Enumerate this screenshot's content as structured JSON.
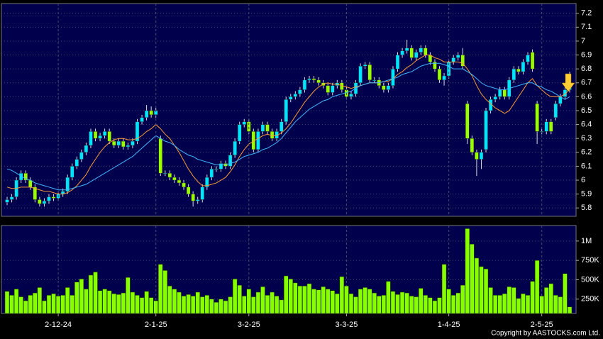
{
  "chart_data": [
    {
      "type": "candlestick",
      "open": [
        5.84,
        5.86,
        5.88,
        6.0,
        6.05,
        6.0,
        5.95,
        5.86,
        5.83,
        5.85,
        5.88,
        5.87,
        5.9,
        5.92,
        6.02,
        6.1,
        6.15,
        6.2,
        6.25,
        6.35,
        6.3,
        6.32,
        6.35,
        6.28,
        6.25,
        6.28,
        6.24,
        6.25,
        6.28,
        6.42,
        6.45,
        6.5,
        6.47,
        6.3,
        6.05,
        6.05,
        6.02,
        6.0,
        5.98,
        5.95,
        5.9,
        5.85,
        5.86,
        5.95,
        6.02,
        6.08,
        6.08,
        6.12,
        6.1,
        6.18,
        6.28,
        6.4,
        6.42,
        6.35,
        6.22,
        6.35,
        6.4,
        6.35,
        6.3,
        6.35,
        6.42,
        6.58,
        6.6,
        6.62,
        6.65,
        6.72,
        6.73,
        6.72,
        6.7,
        6.68,
        6.63,
        6.68,
        6.7,
        6.65,
        6.6,
        6.62,
        6.7,
        6.82,
        6.83,
        6.72,
        6.72,
        6.68,
        6.65,
        6.68,
        6.8,
        6.9,
        6.93,
        6.95,
        6.88,
        6.92,
        6.95,
        6.9,
        6.85,
        6.8,
        6.72,
        6.75,
        6.85,
        6.88,
        6.9,
        6.55,
        6.3,
        6.2,
        6.15,
        6.22,
        6.5,
        6.58,
        6.6,
        6.65,
        6.6,
        6.72,
        6.8,
        6.78,
        6.85,
        6.92,
        6.55,
        6.35,
        6.35,
        6.42,
        6.45,
        6.55,
        6.6,
        6.65
      ],
      "high": [
        5.88,
        5.9,
        6.02,
        6.07,
        6.07,
        6.02,
        5.97,
        5.88,
        5.87,
        5.9,
        5.9,
        5.92,
        5.94,
        6.04,
        6.12,
        6.17,
        6.22,
        6.27,
        6.37,
        6.37,
        6.34,
        6.37,
        6.37,
        6.3,
        6.3,
        6.3,
        6.27,
        6.3,
        6.44,
        6.47,
        6.54,
        6.53,
        6.52,
        6.32,
        6.07,
        6.07,
        6.04,
        6.02,
        6.0,
        5.97,
        5.92,
        5.88,
        5.97,
        6.04,
        6.1,
        6.1,
        6.14,
        6.14,
        6.2,
        6.3,
        6.42,
        6.44,
        6.44,
        6.37,
        6.37,
        6.42,
        6.42,
        6.37,
        6.37,
        6.44,
        6.6,
        6.62,
        6.64,
        6.67,
        6.74,
        6.75,
        6.75,
        6.74,
        6.72,
        6.7,
        6.7,
        6.72,
        6.72,
        6.67,
        6.64,
        6.72,
        6.84,
        6.85,
        6.85,
        6.74,
        6.74,
        6.7,
        6.7,
        6.82,
        6.92,
        6.95,
        7.01,
        6.97,
        6.94,
        6.97,
        6.97,
        6.92,
        6.87,
        6.82,
        6.77,
        6.87,
        6.9,
        6.92,
        6.95,
        6.57,
        6.32,
        6.22,
        6.22,
        6.52,
        6.6,
        6.62,
        6.67,
        6.67,
        6.74,
        6.82,
        6.82,
        6.87,
        6.92,
        6.94,
        6.57,
        6.37,
        6.44,
        6.44,
        6.57,
        6.62,
        6.67,
        6.78
      ],
      "low": [
        5.82,
        5.84,
        5.86,
        5.98,
        5.98,
        5.93,
        5.84,
        5.81,
        5.81,
        5.83,
        5.85,
        5.85,
        5.88,
        5.9,
        6.0,
        6.08,
        6.13,
        6.18,
        6.23,
        6.28,
        6.28,
        6.3,
        6.26,
        6.23,
        6.23,
        6.22,
        6.22,
        6.23,
        6.26,
        6.4,
        6.43,
        6.45,
        6.45,
        6.03,
        6.03,
        6.0,
        5.98,
        5.96,
        5.93,
        5.88,
        5.81,
        5.83,
        5.84,
        5.93,
        6.0,
        6.06,
        6.06,
        6.08,
        6.08,
        6.16,
        6.26,
        6.38,
        6.33,
        6.2,
        6.2,
        6.33,
        6.33,
        6.28,
        6.28,
        6.33,
        6.4,
        6.56,
        6.58,
        6.6,
        6.63,
        6.7,
        6.7,
        6.68,
        6.66,
        6.61,
        6.61,
        6.66,
        6.63,
        6.58,
        6.58,
        6.6,
        6.68,
        6.8,
        6.7,
        6.7,
        6.66,
        6.63,
        6.63,
        6.66,
        6.78,
        6.88,
        6.91,
        6.86,
        6.86,
        6.9,
        6.88,
        6.83,
        6.78,
        6.7,
        6.68,
        6.73,
        6.83,
        6.86,
        6.8,
        6.26,
        6.18,
        6.03,
        6.08,
        6.2,
        6.48,
        6.56,
        6.58,
        6.58,
        6.58,
        6.7,
        6.76,
        6.76,
        6.83,
        6.78,
        6.26,
        6.33,
        6.33,
        6.33,
        6.43,
        6.53,
        6.58,
        6.63
      ],
      "close": [
        5.86,
        5.88,
        6.0,
        6.05,
        6.0,
        5.95,
        5.86,
        5.83,
        5.85,
        5.88,
        5.87,
        5.9,
        5.92,
        6.02,
        6.1,
        6.15,
        6.2,
        6.25,
        6.35,
        6.3,
        6.32,
        6.35,
        6.28,
        6.25,
        6.28,
        6.24,
        6.25,
        6.28,
        6.42,
        6.45,
        6.5,
        6.47,
        6.5,
        6.05,
        6.05,
        6.02,
        6.0,
        5.98,
        5.95,
        5.9,
        5.85,
        5.86,
        5.95,
        6.02,
        6.08,
        6.08,
        6.12,
        6.1,
        6.18,
        6.28,
        6.4,
        6.42,
        6.35,
        6.22,
        6.35,
        6.4,
        6.35,
        6.3,
        6.35,
        6.42,
        6.58,
        6.6,
        6.62,
        6.65,
        6.72,
        6.73,
        6.72,
        6.7,
        6.68,
        6.63,
        6.68,
        6.7,
        6.65,
        6.6,
        6.62,
        6.7,
        6.82,
        6.83,
        6.72,
        6.72,
        6.68,
        6.65,
        6.68,
        6.8,
        6.9,
        6.93,
        6.95,
        6.88,
        6.92,
        6.95,
        6.9,
        6.85,
        6.8,
        6.72,
        6.75,
        6.85,
        6.88,
        6.9,
        6.82,
        6.3,
        6.2,
        6.15,
        6.2,
        6.5,
        6.58,
        6.6,
        6.65,
        6.6,
        6.72,
        6.8,
        6.78,
        6.85,
        6.9,
        6.8,
        6.35,
        6.35,
        6.42,
        6.35,
        6.55,
        6.6,
        6.65,
        6.7
      ],
      "up_color": "#00e5ff",
      "down_color": "#99ff00",
      "series": [
        {
          "color": "#ff9933",
          "values": [
            5.95,
            5.94,
            5.94,
            5.95,
            5.95,
            5.95,
            5.94,
            5.93,
            5.92,
            5.92,
            5.91,
            5.9,
            5.9,
            5.91,
            5.93,
            5.96,
            6.0,
            6.04,
            6.1,
            6.15,
            6.2,
            6.24,
            6.27,
            6.29,
            6.3,
            6.3,
            6.29,
            6.29,
            6.3,
            6.32,
            6.35,
            6.37,
            6.4,
            6.37,
            6.33,
            6.3,
            6.25,
            6.2,
            6.14,
            6.08,
            6.03,
            5.99,
            5.96,
            5.96,
            5.97,
            5.98,
            6.0,
            6.02,
            6.06,
            6.11,
            6.17,
            6.22,
            6.26,
            6.28,
            6.3,
            6.32,
            6.33,
            6.32,
            6.32,
            6.34,
            6.37,
            6.41,
            6.46,
            6.51,
            6.56,
            6.6,
            6.64,
            6.67,
            6.69,
            6.7,
            6.69,
            6.69,
            6.68,
            6.67,
            6.66,
            6.67,
            6.68,
            6.69,
            6.7,
            6.7,
            6.7,
            6.71,
            6.71,
            6.73,
            6.76,
            6.78,
            6.81,
            6.83,
            6.86,
            6.88,
            6.9,
            6.9,
            6.88,
            6.87,
            6.85,
            6.85,
            6.85,
            6.85,
            6.84,
            6.8,
            6.75,
            6.68,
            6.62,
            6.58,
            6.55,
            6.52,
            6.5,
            6.48,
            6.5,
            6.55,
            6.6,
            6.65,
            6.7,
            6.73,
            6.68,
            6.65,
            6.62,
            6.6,
            6.6,
            6.6,
            6.62,
            6.65
          ]
        },
        {
          "color": "#3db8ff",
          "values": [
            6.08,
            6.07,
            6.05,
            6.03,
            6.01,
            6.0,
            5.98,
            5.97,
            5.96,
            5.95,
            5.94,
            5.93,
            5.93,
            5.93,
            5.94,
            5.95,
            5.96,
            5.97,
            5.99,
            6.01,
            6.03,
            6.05,
            6.07,
            6.09,
            6.11,
            6.13,
            6.15,
            6.17,
            6.2,
            6.23,
            6.26,
            6.29,
            6.32,
            6.3,
            6.28,
            6.27,
            6.25,
            6.22,
            6.2,
            6.18,
            6.17,
            6.15,
            6.14,
            6.13,
            6.12,
            6.11,
            6.11,
            6.11,
            6.12,
            6.13,
            6.15,
            6.17,
            6.18,
            6.19,
            6.2,
            6.22,
            6.23,
            6.25,
            6.27,
            6.3,
            6.34,
            6.38,
            6.42,
            6.45,
            6.48,
            6.51,
            6.53,
            6.55,
            6.57,
            6.58,
            6.6,
            6.61,
            6.62,
            6.63,
            6.64,
            6.66,
            6.68,
            6.69,
            6.7,
            6.7,
            6.7,
            6.71,
            6.72,
            6.73,
            6.74,
            6.76,
            6.77,
            6.78,
            6.8,
            6.82,
            6.83,
            6.84,
            6.84,
            6.84,
            6.83,
            6.82,
            6.8,
            6.8,
            6.8,
            6.78,
            6.76,
            6.73,
            6.7,
            6.68,
            6.67,
            6.66,
            6.65,
            6.65,
            6.66,
            6.67,
            6.68,
            6.69,
            6.7,
            6.7,
            6.68,
            6.67,
            6.65,
            6.64,
            6.62,
            6.6,
            6.58,
            6.6
          ]
        }
      ],
      "ylim": [
        5.74,
        7.27
      ],
      "yticks": [
        5.8,
        5.9,
        6,
        6.1,
        6.2,
        6.3,
        6.4,
        6.5,
        6.6,
        6.7,
        6.8,
        6.9,
        7,
        7.1,
        7.2
      ],
      "grid": true
    },
    {
      "type": "bar",
      "categories": [
        null,
        null,
        null,
        null,
        null,
        null,
        null,
        null,
        null,
        null,
        null,
        "2-12-24",
        null,
        null,
        null,
        null,
        null,
        null,
        null,
        null,
        null,
        null,
        null,
        null,
        null,
        null,
        null,
        null,
        null,
        null,
        null,
        null,
        "2-1-25",
        null,
        null,
        null,
        null,
        null,
        null,
        null,
        null,
        null,
        null,
        null,
        null,
        null,
        null,
        null,
        null,
        null,
        null,
        null,
        "3-2-25",
        null,
        null,
        null,
        null,
        null,
        null,
        null,
        null,
        null,
        null,
        null,
        null,
        null,
        null,
        null,
        null,
        null,
        null,
        null,
        null,
        "3-3-25",
        null,
        null,
        null,
        null,
        null,
        null,
        null,
        null,
        null,
        null,
        null,
        null,
        null,
        null,
        null,
        null,
        null,
        null,
        null,
        null,
        null,
        "1-4-25",
        null,
        null,
        null,
        null,
        null,
        null,
        null,
        null,
        null,
        null,
        null,
        null,
        null,
        null,
        null,
        null,
        null,
        null,
        null,
        "2-5-25",
        null,
        null,
        null,
        null,
        null,
        null
      ],
      "values": [
        350000,
        300000,
        380000,
        280000,
        230000,
        300000,
        330000,
        400000,
        230000,
        300000,
        320000,
        290000,
        300000,
        400000,
        300000,
        470000,
        510000,
        380000,
        560000,
        600000,
        360000,
        380000,
        360000,
        320000,
        310000,
        330000,
        530000,
        340000,
        300000,
        270000,
        350000,
        270000,
        230000,
        700000,
        620000,
        420000,
        380000,
        340000,
        290000,
        310000,
        290000,
        340000,
        280000,
        300000,
        250000,
        210000,
        250000,
        230000,
        280000,
        510000,
        430000,
        290000,
        380000,
        280000,
        340000,
        410000,
        300000,
        340000,
        290000,
        240000,
        550000,
        510000,
        460000,
        420000,
        420000,
        450000,
        380000,
        370000,
        410000,
        380000,
        360000,
        320000,
        540000,
        420000,
        320000,
        280000,
        380000,
        400000,
        380000,
        330000,
        290000,
        300000,
        480000,
        350000,
        310000,
        340000,
        330000,
        290000,
        280000,
        390000,
        300000,
        270000,
        230000,
        270000,
        700000,
        380000,
        300000,
        330000,
        430000,
        1160000,
        960000,
        780000,
        670000,
        640000,
        400000,
        300000,
        300000,
        320000,
        410000,
        400000,
        260000,
        320000,
        300000,
        480000,
        750000,
        290000,
        400000,
        450000,
        300000,
        280000,
        580000,
        150000
      ],
      "color": "#88ff00",
      "ylim": [
        65000,
        1200000
      ],
      "yticks": [
        {
          "value": 250000,
          "label": "250K"
        },
        {
          "value": 500000,
          "label": "500K"
        },
        {
          "value": 750000,
          "label": "750K"
        },
        {
          "value": 1000000,
          "label": "1M"
        }
      ],
      "grid": true
    }
  ],
  "copyright": "Copyright by AASTOCKS.com Ltd."
}
